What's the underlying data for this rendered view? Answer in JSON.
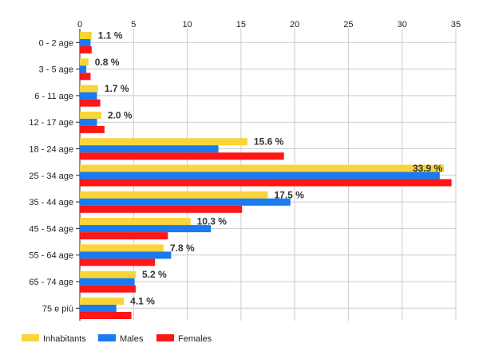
{
  "chart_data": {
    "type": "bar",
    "orientation": "horizontal",
    "categories": [
      "0 - 2 age",
      "3 - 5 age",
      "6 - 11 age",
      "12 - 17 age",
      "18 - 24 age",
      "25 - 34 age",
      "35 - 44 age",
      "45 - 54 age",
      "55 - 64 age",
      "65 - 74 age",
      "75 e più"
    ],
    "series": [
      {
        "name": "Inhabitants",
        "color": "#f9d43a",
        "values": [
          1.1,
          0.8,
          1.7,
          2.0,
          15.6,
          33.9,
          17.5,
          10.3,
          7.8,
          5.2,
          4.1
        ]
      },
      {
        "name": "Males",
        "color": "#1a7af0",
        "values": [
          1.0,
          0.6,
          1.6,
          1.6,
          12.9,
          33.5,
          19.6,
          12.2,
          8.5,
          5.1,
          3.4
        ]
      },
      {
        "name": "Females",
        "color": "#ff1616",
        "values": [
          1.1,
          1.0,
          1.9,
          2.3,
          19.0,
          34.6,
          15.1,
          8.2,
          7.0,
          5.2,
          4.8
        ]
      }
    ],
    "data_labels": [
      "1.1 %",
      "0.8 %",
      "1.7 %",
      "2.0 %",
      "15.6 %",
      "33.9 %",
      "17.5 %",
      "10.3 %",
      "7.8 %",
      "5.2 %",
      "4.1 %"
    ],
    "xlim": [
      0,
      35
    ],
    "xticks": [
      "0",
      "5",
      "10",
      "15",
      "20",
      "25",
      "30",
      "35"
    ],
    "x_axis_position": "top",
    "grid": true,
    "legend": "bottom-left"
  }
}
